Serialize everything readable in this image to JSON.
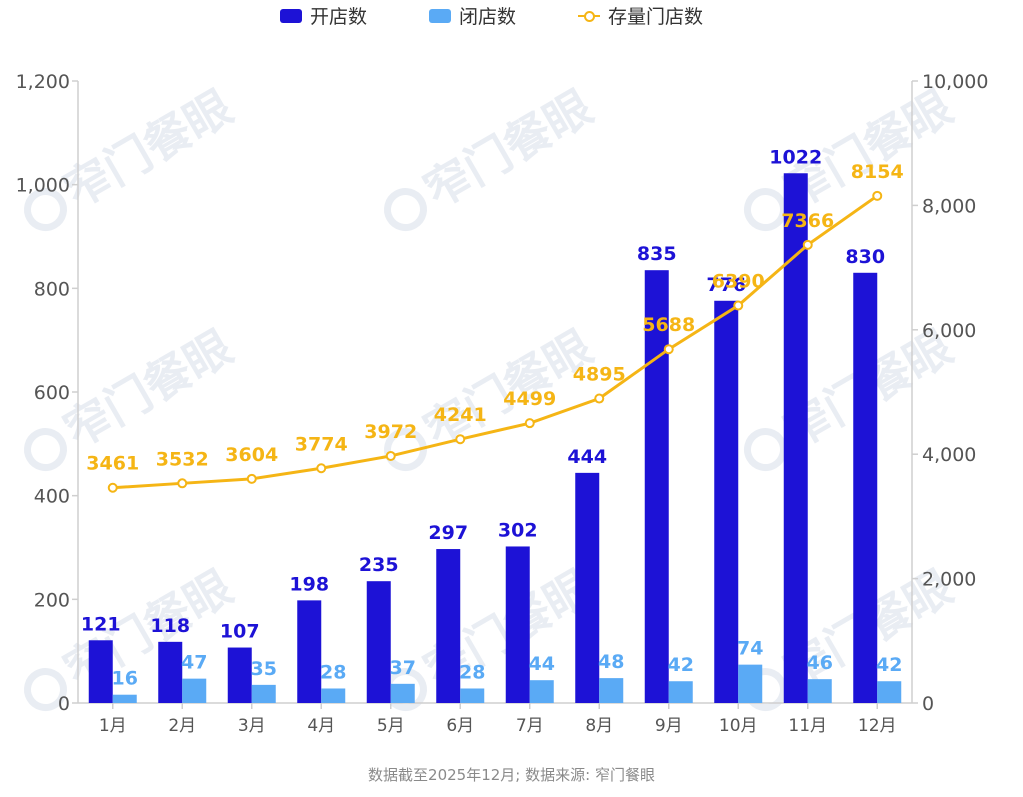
{
  "legend": {
    "open_label": "开店数",
    "close_label": "闭店数",
    "stock_label": "存量门店数"
  },
  "footer": {
    "note": "数据截至2025年12月; 数据来源: 窄门餐眼"
  },
  "watermark": {
    "text": "窄门餐眼"
  },
  "colors": {
    "open": "#1d12d6",
    "close": "#5aaaf5",
    "stock": "#f5b515",
    "axis": "#555555",
    "grid": "#cfcfcf"
  },
  "chart_data": {
    "type": "bar",
    "categories": [
      "1月",
      "2月",
      "3月",
      "4月",
      "5月",
      "6月",
      "7月",
      "8月",
      "9月",
      "10月",
      "11月",
      "12月"
    ],
    "series": [
      {
        "name": "开店数",
        "type": "bar",
        "axis": "left",
        "values": [
          121,
          118,
          107,
          198,
          235,
          297,
          302,
          444,
          835,
          776,
          1022,
          830
        ]
      },
      {
        "name": "闭店数",
        "type": "bar",
        "axis": "left",
        "values": [
          16,
          47,
          35,
          28,
          37,
          28,
          44,
          48,
          42,
          74,
          46,
          42
        ]
      },
      {
        "name": "存量门店数",
        "type": "line",
        "axis": "right",
        "values": [
          3461,
          3532,
          3604,
          3774,
          3972,
          4241,
          4499,
          4895,
          5688,
          6390,
          7366,
          8154
        ]
      }
    ],
    "left_axis": {
      "ylim": [
        0,
        1200
      ],
      "ticks": [
        "0",
        "200",
        "400",
        "600",
        "800",
        "1,000",
        "1,200"
      ]
    },
    "right_axis": {
      "ylim": [
        0,
        10000
      ],
      "ticks": [
        "0",
        "2,000",
        "4,000",
        "6,000",
        "8,000",
        "10,000"
      ]
    },
    "grid": false,
    "legend_position": "top-center"
  }
}
